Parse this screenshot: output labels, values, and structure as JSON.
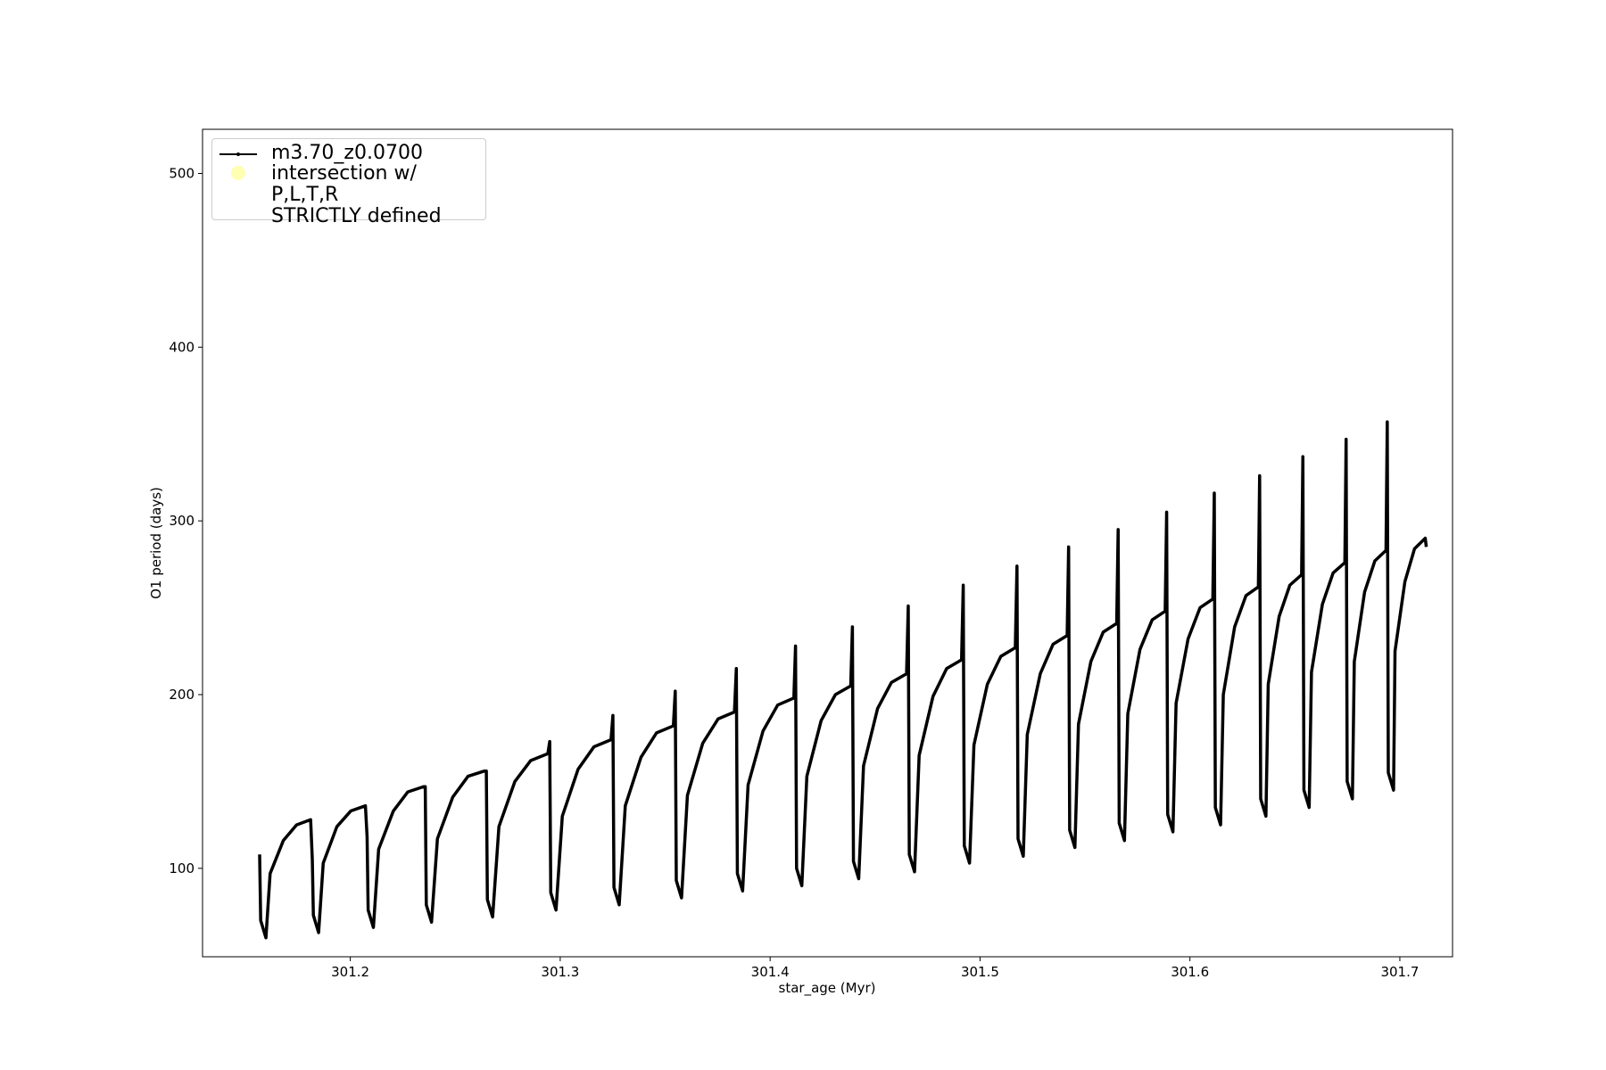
{
  "chart_data": {
    "type": "line",
    "xlabel": "star_age (Myr)",
    "ylabel": "O1 period (days)",
    "x": [
      301.1568,
      301.1573,
      301.1598,
      301.1618,
      301.1681,
      301.1744,
      301.1811,
      301.1819,
      301.1824,
      301.1849,
      301.1871,
      301.1936,
      301.2002,
      301.2072,
      301.208,
      301.2085,
      301.211,
      301.2135,
      301.2205,
      301.2274,
      301.2349,
      301.2357,
      301.2362,
      301.2387,
      301.2415,
      301.2488,
      301.2561,
      301.2639,
      301.2648,
      301.2653,
      301.2678,
      301.2708,
      301.2784,
      301.2859,
      301.2941,
      301.295,
      301.2955,
      301.298,
      301.301,
      301.3085,
      301.3161,
      301.3242,
      301.3251,
      301.3256,
      301.3281,
      301.331,
      301.3385,
      301.3459,
      301.3539,
      301.3548,
      301.3553,
      301.3578,
      301.3606,
      301.3679,
      301.3752,
      301.383,
      301.3839,
      301.3844,
      301.3869,
      301.3895,
      301.3966,
      301.4036,
      301.4113,
      301.4121,
      301.4126,
      301.4151,
      301.4175,
      301.4243,
      301.4311,
      301.4384,
      301.4392,
      301.4397,
      301.4422,
      301.4445,
      301.4512,
      301.4578,
      301.465,
      301.4658,
      301.4663,
      301.4688,
      301.471,
      301.4776,
      301.4841,
      301.4912,
      301.492,
      301.4925,
      301.495,
      301.4971,
      301.5035,
      301.5099,
      301.5168,
      301.5176,
      301.5181,
      301.5206,
      301.5225,
      301.5287,
      301.5348,
      301.5415,
      301.5422,
      301.5427,
      301.5452,
      301.5469,
      301.5528,
      301.5587,
      301.5651,
      301.5658,
      301.5663,
      301.5688,
      301.5704,
      301.5762,
      301.582,
      301.5882,
      301.5889,
      301.5894,
      301.5919,
      301.5934,
      301.5991,
      301.6048,
      301.6109,
      301.6116,
      301.6121,
      301.6146,
      301.6159,
      301.6213,
      301.6267,
      301.6326,
      301.6332,
      301.6337,
      301.6362,
      301.6373,
      301.6425,
      301.6476,
      301.6532,
      301.6538,
      301.6543,
      301.6568,
      301.6579,
      301.6631,
      301.6682,
      301.6738,
      301.6744,
      301.6749,
      301.6774,
      301.6783,
      301.6832,
      301.6881,
      301.6934,
      301.694,
      301.6945,
      301.697,
      301.6977,
      301.7024,
      301.707,
      301.7121,
      301.7126
    ],
    "series": [
      {
        "name": "m3.70_z0.0700",
        "color": "#000000",
        "values": [
          108,
          70,
          60,
          97,
          116,
          125,
          128,
          105,
          73,
          63,
          103,
          124,
          133,
          136,
          118,
          76,
          66,
          111,
          133,
          144,
          147,
          147,
          79,
          69,
          117,
          141,
          153,
          156,
          156,
          82,
          72,
          124,
          150,
          162,
          166,
          173,
          86,
          76,
          130,
          157,
          170,
          174,
          188,
          89,
          79,
          136,
          164,
          178,
          182,
          202,
          93,
          83,
          142,
          172,
          186,
          190,
          215,
          97,
          87,
          148,
          179,
          194,
          198,
          228,
          100,
          90,
          153,
          185,
          200,
          205,
          239,
          104,
          94,
          159,
          192,
          207,
          212,
          251,
          108,
          98,
          165,
          199,
          215,
          220,
          263,
          113,
          103,
          171,
          206,
          222,
          227,
          274,
          117,
          107,
          177,
          212,
          229,
          234,
          285,
          122,
          112,
          183,
          219,
          236,
          241,
          295,
          126,
          116,
          189,
          226,
          243,
          248,
          305,
          131,
          121,
          195,
          232,
          250,
          255,
          316,
          135,
          125,
          200,
          239,
          257,
          262,
          326,
          140,
          130,
          206,
          245,
          263,
          269,
          337,
          145,
          135,
          213,
          252,
          270,
          276,
          347,
          150,
          140,
          219,
          259,
          277,
          283,
          357,
          155,
          145,
          225,
          265,
          284,
          290,
          285
        ]
      },
      {
        "name": "intersection w/ P,L,T,R\nSTRICTLY defined",
        "color": "#ffffb3",
        "x": [],
        "values": []
      }
    ],
    "xlim": [
      301.1296,
      301.7251
    ],
    "xticks": [
      301.2,
      301.3,
      301.4,
      301.5,
      301.6,
      301.7
    ],
    "ylim": [
      49.1,
      525.4
    ],
    "yticks": [
      100,
      200,
      300,
      400,
      500
    ],
    "legend": "upper left"
  }
}
